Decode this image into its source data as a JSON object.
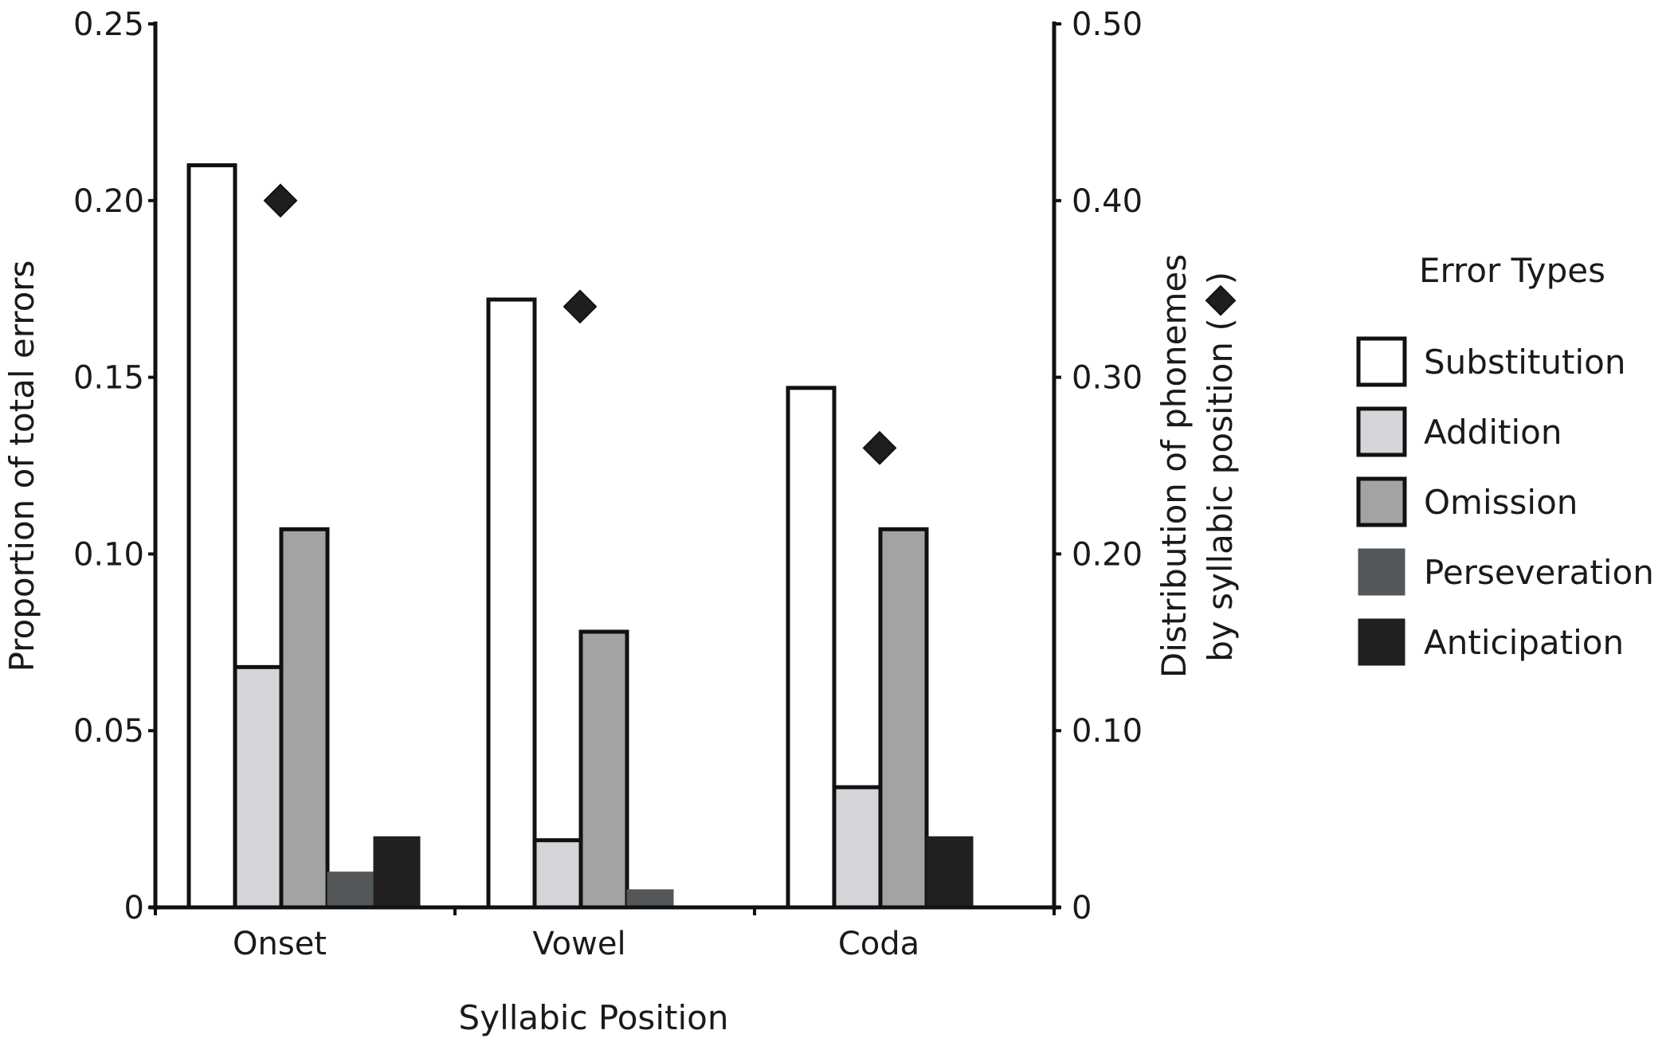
{
  "chart_data": {
    "type": "bar",
    "title": "",
    "xlabel": "Syllabic Position",
    "ylabel": "Proportion of total errors",
    "ylabel_right": [
      "Distribution of phonemes",
      "by syllabic position ("
    ],
    "ylabel_right_suffix": ")",
    "ylim": [
      0,
      0.25
    ],
    "ylim_right": [
      0,
      0.5
    ],
    "yticks": [
      "0",
      "0.05",
      "0.10",
      "0.15",
      "0.20",
      "0.25"
    ],
    "yticks_values": [
      0,
      0.05,
      0.1,
      0.15,
      0.2,
      0.25
    ],
    "yticks_right": [
      "0",
      "0.10",
      "0.20",
      "0.30",
      "0.40",
      "0.50"
    ],
    "yticks_right_values": [
      0,
      0.1,
      0.2,
      0.3,
      0.4,
      0.5
    ],
    "grid": false,
    "categories": [
      "Onset",
      "Vowel",
      "Coda"
    ],
    "legend_title": "Error Types",
    "legend_position": "right",
    "series": [
      {
        "name": "Substitution",
        "color": "#ffffff",
        "outlined": true,
        "values": [
          0.21,
          0.172,
          0.147
        ]
      },
      {
        "name": "Addition",
        "color": "#d4d5d8",
        "outlined": true,
        "values": [
          0.068,
          0.019,
          0.034
        ]
      },
      {
        "name": "Omission",
        "color": "#a3a3a3",
        "outlined": true,
        "values": [
          0.107,
          0.078,
          0.107
        ]
      },
      {
        "name": "Perseveration",
        "color": "#54575a",
        "outlined": false,
        "values": [
          0.01,
          0.005,
          0
        ]
      },
      {
        "name": "Anticipation",
        "color": "#221f20",
        "outlined": false,
        "values": [
          0.02,
          0,
          0.02
        ]
      }
    ],
    "overlay_series": {
      "name": "Distribution of phonemes by syllabic position",
      "marker": "diamond",
      "axis": "right",
      "color": "#1e1e1e",
      "values": [
        0.4,
        0.34,
        0.26
      ]
    }
  }
}
